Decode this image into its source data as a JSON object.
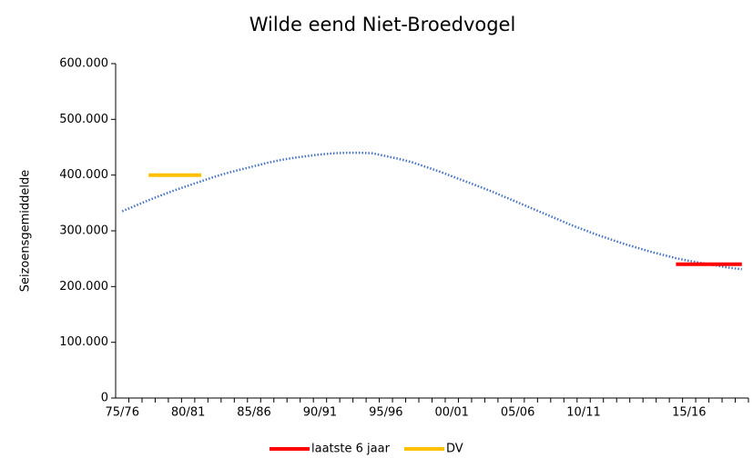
{
  "chart_data": {
    "type": "line",
    "title": "Wilde eend Niet-Broedvogel",
    "y_label": "Seizoensgemiddelde",
    "categories": [
      "75/76",
      null,
      null,
      null,
      null,
      "80/81",
      null,
      null,
      null,
      null,
      "85/86",
      null,
      null,
      null,
      null,
      "90/91",
      null,
      null,
      null,
      null,
      "95/96",
      null,
      null,
      null,
      null,
      "00/01",
      null,
      null,
      null,
      null,
      "05/06",
      null,
      null,
      null,
      null,
      "10/11",
      null,
      null,
      null,
      null,
      null,
      null,
      null,
      "15/16",
      null,
      null,
      null,
      null
    ],
    "ylim": [
      0,
      600000
    ],
    "yticks": [
      0,
      {
        "value": 100000,
        "label": "100.000"
      },
      {
        "value": 200000,
        "label": "200.000"
      },
      {
        "value": 300000,
        "label": "300.000"
      },
      {
        "value": 400000,
        "label": "400.000"
      },
      {
        "value": 500000,
        "label": "500.000"
      },
      {
        "value": 600000,
        "label": "600.000"
      }
    ],
    "grid": false,
    "series": [
      {
        "color": "#4472c4",
        "style": "dotted",
        "values": [
          335000,
          345000,
          355000,
          364000,
          373000,
          381000,
          389000,
          397000,
          404000,
          410000,
          416000,
          422000,
          427000,
          431000,
          434000,
          437000,
          439000,
          440000,
          440000,
          439000,
          434000,
          429000,
          423000,
          415000,
          407000,
          398000,
          389000,
          380000,
          371000,
          361000,
          351000,
          341000,
          331000,
          321000,
          311000,
          302000,
          293000,
          285000,
          277000,
          270000,
          263000,
          257000,
          251000,
          246000,
          242000,
          238000,
          234000,
          231000
        ]
      },
      {
        "name": "laatste 6 jaar",
        "color": "#ff0000",
        "style": "solid",
        "values": [
          null,
          null,
          null,
          null,
          null,
          null,
          null,
          null,
          null,
          null,
          null,
          null,
          null,
          null,
          null,
          null,
          null,
          null,
          null,
          null,
          null,
          null,
          null,
          null,
          null,
          null,
          null,
          null,
          null,
          null,
          null,
          null,
          null,
          null,
          null,
          null,
          null,
          null,
          null,
          null,
          null,
          null,
          240000,
          240000,
          240000,
          240000,
          240000,
          240000
        ]
      },
      {
        "name": "DV",
        "color": "#ffc000",
        "style": "solid",
        "values": [
          null,
          null,
          400000,
          400000,
          400000,
          400000,
          400000,
          null,
          null,
          null,
          null,
          null,
          null,
          null,
          null,
          null,
          null,
          null,
          null,
          null,
          null,
          null,
          null,
          null,
          null,
          null,
          null,
          null,
          null,
          null,
          null,
          null,
          null,
          null,
          null,
          null,
          null,
          null,
          null,
          null,
          null,
          null,
          null,
          null,
          null,
          null,
          null,
          null
        ]
      }
    ],
    "legend": "bottom"
  }
}
